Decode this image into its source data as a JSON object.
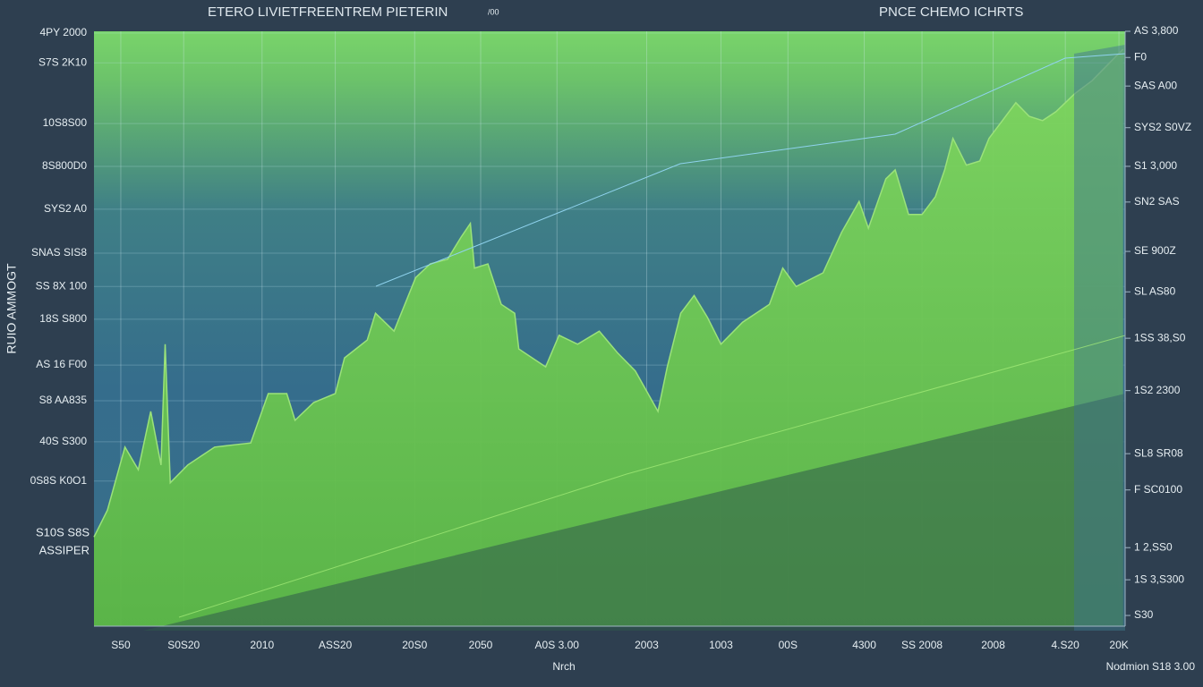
{
  "chart_data": {
    "type": "area",
    "title": "ETERO LIVIETFREENTREM PIETERIN",
    "subtitle": "/00",
    "right_title": "PNCE CHEMO ICHRTS",
    "ylabel": "RUIO AMMOGT",
    "xlabel": "Nrch",
    "footer": "Nodmion S18 3.00",
    "annotations": [
      "S10S S8S",
      "ASSIPER"
    ],
    "color": "#9be27a",
    "fill_color": "#6cc94a",
    "grid": true,
    "xlim": [
      0,
      100
    ],
    "ylim": [
      0,
      100
    ],
    "y2lim": [
      0,
      100
    ],
    "xticks": [
      {
        "value": 2.6,
        "label": "S50"
      },
      {
        "value": 8.7,
        "label": "S0S20"
      },
      {
        "value": 16.3,
        "label": "2010"
      },
      {
        "value": 23.4,
        "label": "ASS20"
      },
      {
        "value": 31.1,
        "label": "20S0"
      },
      {
        "value": 37.5,
        "label": "2050"
      },
      {
        "value": 44.9,
        "label": "A0S 3.00"
      },
      {
        "value": 53.6,
        "label": "2003"
      },
      {
        "value": 60.8,
        "label": "1003"
      },
      {
        "value": 67.3,
        "label": "00S"
      },
      {
        "value": 74.7,
        "label": "4300"
      },
      {
        "value": 80.3,
        "label": "SS 2008"
      },
      {
        "value": 87.2,
        "label": "2008"
      },
      {
        "value": 94.2,
        "label": "4.S20"
      },
      {
        "value": 99.4,
        "label": "20K"
      }
    ],
    "yticks": [
      {
        "value": 99.7,
        "label": "4PY 2000"
      },
      {
        "value": 94.7,
        "label": "S7S 2K10"
      },
      {
        "value": 84.5,
        "label": "10S8S00"
      },
      {
        "value": 77.3,
        "label": "8S800D0"
      },
      {
        "value": 70.1,
        "label": "SYS2 A0"
      },
      {
        "value": 62.7,
        "label": "SNAS SIS8"
      },
      {
        "value": 57.1,
        "label": "SS 8X 100"
      },
      {
        "value": 51.6,
        "label": "18S S800"
      },
      {
        "value": 43.9,
        "label": "AS 16 F00"
      },
      {
        "value": 37.9,
        "label": "S8 AA835"
      },
      {
        "value": 31.0,
        "label": "40S S300"
      },
      {
        "value": 24.4,
        "label": "0S8S K0O1"
      }
    ],
    "y2ticks": [
      {
        "value": 100,
        "label": "AS 3,800"
      },
      {
        "value": 95.6,
        "label": "F0"
      },
      {
        "value": 90.8,
        "label": "SAS A00"
      },
      {
        "value": 83.8,
        "label": "SYS2 S0VZ"
      },
      {
        "value": 77.3,
        "label": "S1 3,000"
      },
      {
        "value": 71.3,
        "label": "SN2 SAS"
      },
      {
        "value": 63.0,
        "label": "SE 900Z"
      },
      {
        "value": 56.2,
        "label": "SL AS80"
      },
      {
        "value": 48.4,
        "label": "1SS 38,S0"
      },
      {
        "value": 39.6,
        "label": "1S2 2300"
      },
      {
        "value": 29.0,
        "label": "SL8 SR08"
      },
      {
        "value": 22.9,
        "label": "F SC0100"
      },
      {
        "value": 13.2,
        "label": "1 2,SS0"
      },
      {
        "value": 7.8,
        "label": "1S 3,S300"
      },
      {
        "value": 1.8,
        "label": "S30"
      }
    ],
    "x": [
      0,
      1.3,
      3.0,
      4.3,
      5.5,
      6.5,
      6.9,
      7.4,
      9.1,
      11.7,
      15.2,
      16.9,
      18.7,
      19.5,
      21.3,
      23.4,
      24.3,
      26.5,
      27.3,
      29.1,
      31.2,
      32.6,
      34.3,
      35.6,
      36.5,
      36.9,
      38.2,
      39.5,
      40.8,
      41.2,
      42.5,
      43.8,
      45.1,
      46.9,
      49.0,
      50.8,
      52.5,
      54.7,
      55.6,
      56.9,
      58.2,
      59.5,
      60.8,
      62.9,
      65.5,
      66.8,
      68.1,
      70.7,
      72.5,
      74.2,
      75.1,
      76.8,
      77.7,
      79.0,
      80.3,
      81.6,
      82.5,
      83.3,
      84.6,
      85.9,
      86.8,
      88.1,
      89.4,
      90.7,
      92.0,
      93.3,
      95.1,
      96.8,
      98.5,
      99.8
    ],
    "values": [
      15.0,
      19.5,
      30.1,
      26.3,
      36.1,
      27.1,
      47.4,
      24.1,
      27.1,
      30.1,
      30.8,
      39.1,
      39.1,
      34.6,
      37.6,
      39.1,
      45.1,
      48.1,
      52.6,
      49.6,
      58.6,
      60.9,
      61.7,
      65.4,
      67.7,
      60.2,
      60.9,
      54.1,
      52.6,
      46.6,
      45.1,
      43.6,
      48.9,
      47.4,
      49.6,
      45.9,
      42.9,
      36.1,
      43.6,
      52.6,
      55.6,
      51.9,
      47.4,
      51.1,
      54.1,
      60.2,
      57.1,
      59.4,
      66.2,
      71.4,
      66.9,
      75.2,
      76.7,
      69.2,
      69.2,
      72.2,
      76.7,
      82.0,
      77.5,
      78.2,
      82.0,
      85.0,
      88.0,
      85.7,
      85.0,
      86.5,
      89.5,
      91.7,
      94.7,
      97.0
    ]
  }
}
